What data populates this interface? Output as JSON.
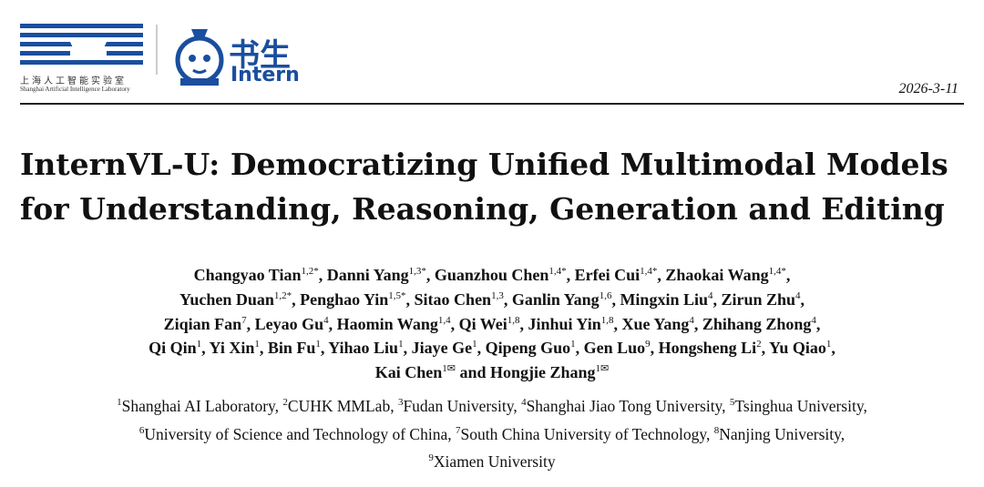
{
  "header": {
    "lab_name_cn": "上海人工智能实验室",
    "lab_name_en": "Shanghai Artificial Intelligence Laboratory",
    "brand_cn": "书生",
    "brand_en": "Intern",
    "date": "2026-3-11"
  },
  "title": {
    "lines": [
      "InternVL-U: Democratizing Unified Multimodal Models",
      "for Understanding, Reasoning, Generation and Editing"
    ]
  },
  "authors": {
    "lines": [
      [
        {
          "name": "Changyao Tian",
          "sup": "1,2*",
          "sep": ", "
        },
        {
          "name": "Danni Yang",
          "sup": "1,3*",
          "sep": ", "
        },
        {
          "name": "Guanzhou Chen",
          "sup": "1,4*",
          "sep": ", "
        },
        {
          "name": "Erfei Cui",
          "sup": "1,4*",
          "sep": ", "
        },
        {
          "name": "Zhaokai Wang",
          "sup": "1,4*",
          "sep": ","
        }
      ],
      [
        {
          "name": "Yuchen Duan",
          "sup": "1,2*",
          "sep": ", "
        },
        {
          "name": "Penghao Yin",
          "sup": "1,5*",
          "sep": ", "
        },
        {
          "name": "Sitao Chen",
          "sup": "1,3",
          "sep": ", "
        },
        {
          "name": "Ganlin Yang",
          "sup": "1,6",
          "sep": ", "
        },
        {
          "name": "Mingxin Liu",
          "sup": "4",
          "sep": ", "
        },
        {
          "name": "Zirun Zhu",
          "sup": "4",
          "sep": ","
        }
      ],
      [
        {
          "name": "Ziqian Fan",
          "sup": "7",
          "sep": ", "
        },
        {
          "name": "Leyao Gu",
          "sup": "4",
          "sep": ", "
        },
        {
          "name": "Haomin Wang",
          "sup": "1,4",
          "sep": ", "
        },
        {
          "name": "Qi Wei",
          "sup": "1,8",
          "sep": ", "
        },
        {
          "name": "Jinhui Yin",
          "sup": "1,8",
          "sep": ", "
        },
        {
          "name": "Xue Yang",
          "sup": "4",
          "sep": ", "
        },
        {
          "name": "Zhihang Zhong",
          "sup": "4",
          "sep": ","
        }
      ],
      [
        {
          "name": "Qi Qin",
          "sup": "1",
          "sep": ", "
        },
        {
          "name": "Yi Xin",
          "sup": "1",
          "sep": ", "
        },
        {
          "name": "Bin Fu",
          "sup": "1",
          "sep": ", "
        },
        {
          "name": "Yihao Liu",
          "sup": "1",
          "sep": ", "
        },
        {
          "name": "Jiaye Ge",
          "sup": "1",
          "sep": ", "
        },
        {
          "name": "Qipeng Guo",
          "sup": "1",
          "sep": ", "
        },
        {
          "name": "Gen Luo",
          "sup": "9",
          "sep": ", "
        },
        {
          "name": "Hongsheng Li",
          "sup": "2",
          "sep": ", "
        },
        {
          "name": "Yu Qiao",
          "sup": "1",
          "sep": ","
        }
      ],
      [
        {
          "name": "Kai Chen",
          "sup": "1✉",
          "sep": " and "
        },
        {
          "name": "Hongjie Zhang",
          "sup": "1✉"
        }
      ]
    ]
  },
  "affiliations": {
    "lines": [
      [
        {
          "num": 1,
          "name": "Shanghai AI Laboratory",
          "sep": ", "
        },
        {
          "num": 2,
          "name": "CUHK MMLab",
          "sep": ", "
        },
        {
          "num": 3,
          "name": "Fudan University",
          "sep": ", "
        },
        {
          "num": 4,
          "name": "Shanghai Jiao Tong University",
          "sep": ", "
        },
        {
          "num": 5,
          "name": "Tsinghua University",
          "sep": ","
        }
      ],
      [
        {
          "num": 6,
          "name": "University of Science and Technology of China",
          "sep": ", "
        },
        {
          "num": 7,
          "name": "South China University of Technology",
          "sep": ", "
        },
        {
          "num": 8,
          "name": "Nanjing University",
          "sep": ","
        }
      ],
      [
        {
          "num": 9,
          "name": "Xiamen University"
        }
      ]
    ]
  }
}
